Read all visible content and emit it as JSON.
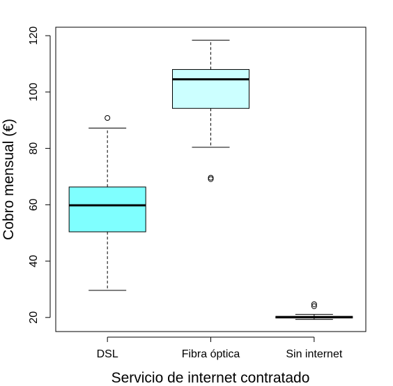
{
  "chart_data": {
    "type": "boxplot",
    "title": "",
    "xlabel": "Servicio de internet contratado",
    "ylabel": "Cobro mensual (€)",
    "ylim": [
      15,
      123
    ],
    "yticks": [
      20,
      40,
      60,
      80,
      100,
      120
    ],
    "yticklabels": [
      "20",
      "40",
      "60",
      "80",
      "100",
      "120"
    ],
    "categories": [
      "DSL",
      "Fibra óptica",
      "Sin internet"
    ],
    "grid": false,
    "colors": {
      "DSL": "#7fffff",
      "Fibra óptica": "#ccffff",
      "Sin internet": "#ffffff"
    },
    "boxes": [
      {
        "name": "DSL",
        "whisker_low": 29.6,
        "q1": 50.4,
        "median": 59.8,
        "q3": 66.3,
        "whisker_high": 87.2,
        "outliers": [
          90.8
        ]
      },
      {
        "name": "Fibra óptica",
        "whisker_low": 80.4,
        "q1": 94.2,
        "median": 104.5,
        "q3": 108.0,
        "whisker_high": 118.4,
        "outliers": [
          69.1,
          69.6
        ]
      },
      {
        "name": "Sin internet",
        "whisker_low": 19.3,
        "q1": 19.8,
        "median": 20.1,
        "q3": 20.4,
        "whisker_high": 21.1,
        "outliers": [
          24.0,
          24.7
        ]
      }
    ]
  }
}
